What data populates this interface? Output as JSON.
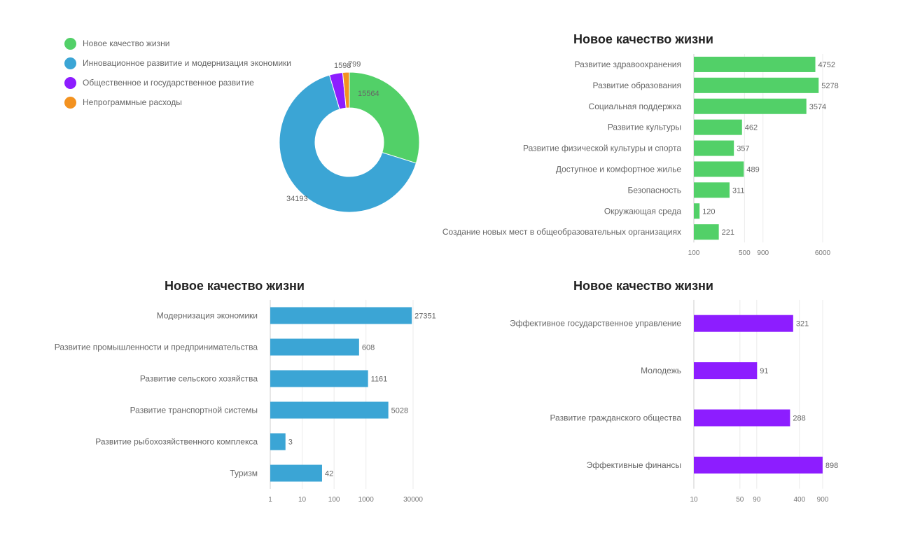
{
  "chart_data": [
    {
      "type": "pie",
      "title": "",
      "legend_position": "top-left",
      "donut": true,
      "slices": [
        {
          "label": "Новое качество жизни",
          "value": 15564,
          "color": "#52d068"
        },
        {
          "label": "Инновационное развитие и модернизация экономики",
          "value": 34193,
          "color": "#3ba5d5"
        },
        {
          "label": "Общественное и государственное развитие",
          "value": 1598,
          "color": "#8d1dff"
        },
        {
          "label": "Непрограммные расходы",
          "value": 799,
          "color": "#f39220"
        }
      ],
      "value_labels": [
        "15564",
        "34193",
        "1598",
        "799"
      ]
    },
    {
      "type": "bar",
      "orientation": "horizontal",
      "title": "Новое качество жизни",
      "color": "#52d068",
      "xscale": "log",
      "xlim": [
        100,
        6000
      ],
      "xticks": [
        "100",
        "500",
        "900",
        "6000"
      ],
      "grid": true,
      "categories": [
        "Развитие здравоохранения",
        "Развитие образования",
        "Социальная поддержка",
        "Развитие культуры",
        "Развитие физической культуры и спорта",
        "Доступное и комфортное жилье",
        "Безопасность",
        "Окружающая среда",
        "Создание новых мест в общеобразовательных организациях"
      ],
      "values": [
        4752,
        5278,
        3574,
        462,
        357,
        489,
        311,
        120,
        221
      ],
      "value_labels": [
        "4752",
        "5278",
        "3574",
        "462",
        "357",
        "489",
        "311",
        "120",
        "221"
      ]
    },
    {
      "type": "bar",
      "orientation": "horizontal",
      "title": "Новое качество жизни",
      "color": "#3ba5d5",
      "xscale": "log",
      "xlim": [
        1,
        30000
      ],
      "xticks": [
        "1",
        "10",
        "100",
        "1000",
        "30000"
      ],
      "grid": true,
      "categories": [
        "Модернизация экономики",
        "Развитие промышленности  и предпринимательства",
        "Развитие сельского хозяйства",
        "Развитие транспортной системы",
        "Развитие рыбохозяйственного комплекса",
        "Туризм"
      ],
      "values": [
        27351,
        608,
        1161,
        5028,
        3,
        42
      ],
      "value_labels": [
        "27351",
        "608",
        "1161",
        "5028",
        "3",
        "42"
      ]
    },
    {
      "type": "bar",
      "orientation": "horizontal",
      "title": "Новое качество жизни",
      "color": "#8d1dff",
      "xscale": "log",
      "xlim": [
        10,
        900
      ],
      "xticks": [
        "10",
        "50",
        "90",
        "400",
        "900"
      ],
      "grid": true,
      "categories": [
        "Эффективное государственное управление",
        "Молодежь",
        "Развитие гражданского общества",
        "Эффективные финансы"
      ],
      "values": [
        321,
        91,
        288,
        898
      ],
      "value_labels": [
        "321",
        "91",
        "288",
        "898"
      ]
    }
  ]
}
